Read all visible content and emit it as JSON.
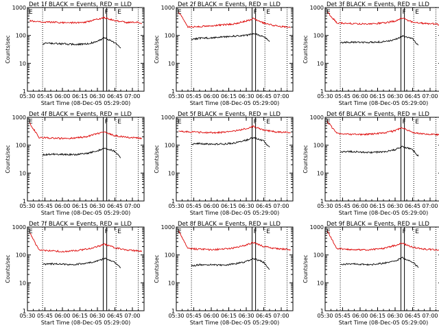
{
  "chart_data": {
    "type": "line",
    "scale_y": "log",
    "ylim": [
      1,
      1000
    ],
    "ylabel": "Counts/sec",
    "xlabel": "Start Time (08-Dec-05 05:29:00)",
    "x_ticks": [
      "05:30",
      "05:45",
      "06:00",
      "06:15",
      "06:30",
      "06:45",
      "07:00"
    ],
    "y_ticks": [
      "1",
      "10",
      "100",
      "1000"
    ],
    "xlim": [
      "05:30",
      "07:10"
    ],
    "markers": [
      {
        "label": "E",
        "time": "05:30",
        "style": "solid"
      },
      {
        "label": "",
        "time": "05:43",
        "style": "dotted"
      },
      {
        "label": "F",
        "time": "06:35",
        "style": "solid"
      },
      {
        "label": "",
        "time": "06:38",
        "style": "solid"
      },
      {
        "label": "E",
        "time": "06:46",
        "style": "dotted"
      },
      {
        "label": "",
        "time": "07:05",
        "style": "dotted"
      }
    ],
    "colors": {
      "events": "#000000",
      "lld": "#dd0000"
    },
    "panels": [
      {
        "title": "Det 1f BLACK = Events, RED = LLD",
        "series": [
          {
            "name": "LLD",
            "color": "#dd0000",
            "x": [
              "05:32",
              "05:40",
              "05:50",
              "06:00",
              "06:10",
              "06:20",
              "06:30",
              "06:36",
              "06:45",
              "06:55",
              "07:05",
              "07:08"
            ],
            "values": [
              330,
              310,
              300,
              290,
              285,
              300,
              380,
              440,
              340,
              290,
              310,
              260
            ]
          },
          {
            "name": "Events",
            "color": "#000000",
            "x": [
              "05:43",
              "05:50",
              "06:00",
              "06:10",
              "06:20",
              "06:30",
              "06:36",
              "06:45",
              "06:50"
            ],
            "values": [
              50,
              52,
              50,
              48,
              49,
              60,
              85,
              55,
              35
            ]
          }
        ]
      },
      {
        "title": "Det 2f BLACK = Events, RED = LLD",
        "series": [
          {
            "name": "LLD",
            "color": "#dd0000",
            "x": [
              "05:32",
              "05:40",
              "05:50",
              "06:00",
              "06:10",
              "06:20",
              "06:30",
              "06:36",
              "06:45",
              "06:55",
              "07:05",
              "07:08"
            ],
            "values": [
              700,
              200,
              210,
              220,
              240,
              260,
              330,
              400,
              280,
              220,
              200,
              190
            ]
          },
          {
            "name": "Events",
            "color": "#000000",
            "x": [
              "05:43",
              "05:50",
              "06:00",
              "06:10",
              "06:20",
              "06:30",
              "06:36",
              "06:45",
              "06:50"
            ],
            "values": [
              70,
              80,
              82,
              88,
              95,
              100,
              120,
              90,
              60
            ]
          }
        ]
      },
      {
        "title": "Det 3f BLACK = Events, RED = LLD",
        "series": [
          {
            "name": "LLD",
            "color": "#dd0000",
            "x": [
              "05:32",
              "05:40",
              "05:50",
              "06:00",
              "06:10",
              "06:20",
              "06:30",
              "06:36",
              "06:45",
              "06:55",
              "07:05",
              "07:08"
            ],
            "values": [
              700,
              280,
              270,
              260,
              265,
              280,
              330,
              420,
              300,
              270,
              260,
              240
            ]
          },
          {
            "name": "Events",
            "color": "#000000",
            "x": [
              "05:43",
              "05:50",
              "06:00",
              "06:10",
              "06:20",
              "06:30",
              "06:36",
              "06:45",
              "06:50"
            ],
            "values": [
              55,
              58,
              56,
              57,
              60,
              70,
              95,
              75,
              45
            ]
          }
        ]
      },
      {
        "title": "Det 4f BLACK = Events, RED = LLD",
        "series": [
          {
            "name": "LLD",
            "color": "#dd0000",
            "x": [
              "05:32",
              "05:40",
              "05:50",
              "06:00",
              "06:10",
              "06:20",
              "06:30",
              "06:36",
              "06:45",
              "06:55",
              "07:05",
              "07:08"
            ],
            "values": [
              600,
              190,
              180,
              175,
              180,
              200,
              260,
              300,
              220,
              190,
              180,
              170
            ]
          },
          {
            "name": "Events",
            "color": "#000000",
            "x": [
              "05:43",
              "05:50",
              "06:00",
              "06:10",
              "06:20",
              "06:30",
              "06:36",
              "06:45",
              "06:50"
            ],
            "values": [
              45,
              48,
              47,
              46,
              50,
              62,
              80,
              60,
              35
            ]
          }
        ]
      },
      {
        "title": "Det 5f BLACK = Events, RED = LLD",
        "series": [
          {
            "name": "LLD",
            "color": "#dd0000",
            "x": [
              "05:32",
              "05:40",
              "05:50",
              "06:00",
              "06:10",
              "06:20",
              "06:30",
              "06:36",
              "06:45",
              "06:55",
              "07:05",
              "07:08"
            ],
            "values": [
              320,
              300,
              290,
              280,
              290,
              320,
              400,
              470,
              350,
              300,
              290,
              280
            ]
          },
          {
            "name": "Events",
            "color": "#000000",
            "x": [
              "05:43",
              "05:50",
              "06:00",
              "06:10",
              "06:20",
              "06:30",
              "06:36",
              "06:45",
              "06:50"
            ],
            "values": [
              110,
              115,
              108,
              110,
              120,
              150,
              190,
              140,
              85
            ]
          }
        ]
      },
      {
        "title": "Det 6f BLACK = Events, RED = LLD",
        "series": [
          {
            "name": "LLD",
            "color": "#dd0000",
            "x": [
              "05:32",
              "05:40",
              "05:50",
              "06:00",
              "06:10",
              "06:20",
              "06:30",
              "06:36",
              "06:45",
              "06:55",
              "07:05",
              "07:08"
            ],
            "values": [
              700,
              260,
              250,
              245,
              250,
              270,
              330,
              420,
              290,
              250,
              240,
              230
            ]
          },
          {
            "name": "Events",
            "color": "#000000",
            "x": [
              "05:43",
              "05:50",
              "06:00",
              "06:10",
              "06:20",
              "06:30",
              "06:36",
              "06:45",
              "06:50"
            ],
            "values": [
              55,
              60,
              57,
              55,
              58,
              68,
              90,
              70,
              40
            ]
          }
        ]
      },
      {
        "title": "Det 7f BLACK = Events, RED = LLD",
        "series": [
          {
            "name": "LLD",
            "color": "#dd0000",
            "x": [
              "05:32",
              "05:40",
              "05:50",
              "06:00",
              "06:10",
              "06:20",
              "06:30",
              "06:36",
              "06:45",
              "06:55",
              "07:05",
              "07:08"
            ],
            "values": [
              600,
              150,
              140,
              135,
              140,
              160,
              200,
              240,
              180,
              150,
              140,
              130
            ]
          },
          {
            "name": "Events",
            "color": "#000000",
            "x": [
              "05:43",
              "05:50",
              "06:00",
              "06:10",
              "06:20",
              "06:30",
              "06:36",
              "06:45",
              "06:50"
            ],
            "values": [
              45,
              48,
              46,
              45,
              50,
              60,
              75,
              55,
              35
            ]
          }
        ]
      },
      {
        "title": "Det 8f BLACK = Events, RED = LLD",
        "series": [
          {
            "name": "LLD",
            "color": "#dd0000",
            "x": [
              "05:32",
              "05:40",
              "05:50",
              "06:00",
              "06:10",
              "06:20",
              "06:30",
              "06:36",
              "06:45",
              "06:55",
              "07:05",
              "07:08"
            ],
            "values": [
              700,
              170,
              160,
              155,
              160,
              180,
              230,
              280,
              200,
              170,
              160,
              150
            ]
          },
          {
            "name": "Events",
            "color": "#000000",
            "x": [
              "05:43",
              "05:50",
              "06:00",
              "06:10",
              "06:20",
              "06:30",
              "06:36",
              "06:45",
              "06:50"
            ],
            "values": [
              40,
              45,
              44,
              43,
              48,
              58,
              75,
              55,
              30
            ]
          }
        ]
      },
      {
        "title": "Det 9f BLACK = Events, RED = LLD",
        "series": [
          {
            "name": "LLD",
            "color": "#dd0000",
            "x": [
              "05:32",
              "05:40",
              "05:50",
              "06:00",
              "06:10",
              "06:20",
              "06:30",
              "06:36",
              "06:45",
              "06:55",
              "07:05",
              "07:08"
            ],
            "values": [
              700,
              170,
              160,
              150,
              155,
              170,
              220,
              260,
              190,
              160,
              155,
              150
            ]
          },
          {
            "name": "Events",
            "color": "#000000",
            "x": [
              "05:43",
              "05:50",
              "06:00",
              "06:10",
              "06:20",
              "06:30",
              "06:36",
              "06:45",
              "06:50"
            ],
            "values": [
              45,
              48,
              46,
              45,
              50,
              60,
              80,
              55,
              35
            ]
          }
        ]
      }
    ]
  }
}
